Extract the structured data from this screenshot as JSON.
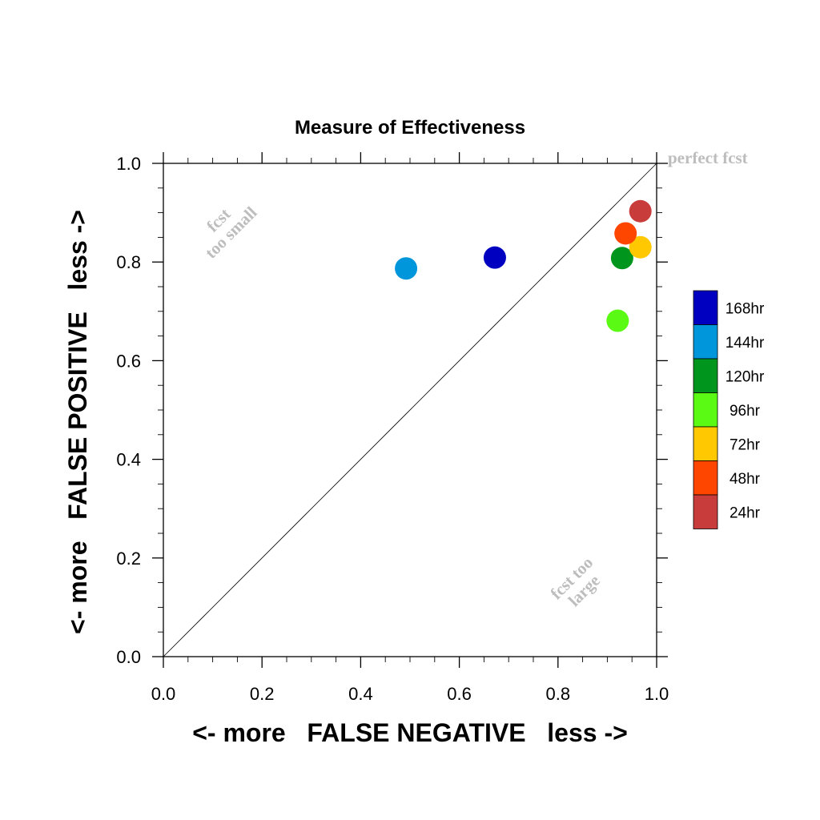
{
  "chart_data": {
    "type": "scatter",
    "title": "Measure of Effectiveness",
    "xlabel": "<- more   FALSE NEGATIVE   less ->",
    "ylabel": "<- more   FALSE POSITIVE   less ->",
    "xlim": [
      0,
      1
    ],
    "ylim": [
      0,
      1
    ],
    "xticks": [
      "0.0",
      "0.2",
      "0.4",
      "0.6",
      "0.8",
      "1.0"
    ],
    "yticks": [
      "0.0",
      "0.2",
      "0.4",
      "0.6",
      "0.8",
      "1.0"
    ],
    "grid": false,
    "diagonal_line": true,
    "legend_position": "right",
    "annotations": {
      "perfect": "perfect fcst",
      "small_line1": "fcst",
      "small_line2": "too small",
      "large_line1": "fcst too",
      "large_line2": "large"
    },
    "series": [
      {
        "name": "168hr",
        "color": "#0000c0",
        "x": 0.672,
        "y": 0.809
      },
      {
        "name": "144hr",
        "color": "#0096dc",
        "x": 0.492,
        "y": 0.787
      },
      {
        "name": "120hr",
        "color": "#00961e",
        "x": 0.93,
        "y": 0.808
      },
      {
        "name": "96hr",
        "color": "#5afa14",
        "x": 0.921,
        "y": 0.681
      },
      {
        "name": "72hr",
        "color": "#ffc800",
        "x": 0.967,
        "y": 0.83
      },
      {
        "name": "48hr",
        "color": "#ff4600",
        "x": 0.937,
        "y": 0.858
      },
      {
        "name": "24hr",
        "color": "#c83c3c",
        "x": 0.967,
        "y": 0.903
      }
    ]
  }
}
